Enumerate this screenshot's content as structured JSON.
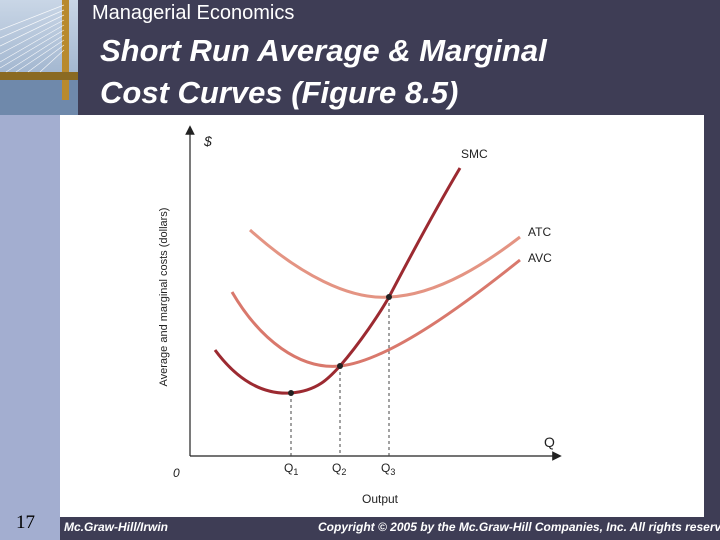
{
  "slide": {
    "header": "Managerial Economics",
    "title_line1": "Short Run Average & Marginal",
    "title_line2": "Cost Curves  (Figure 8.5)",
    "number": "17",
    "footer_left": "Mc.Graw-Hill/Irwin",
    "footer_right": "Copyright © 2005 by the Mc.Graw-Hill Companies, Inc. All rights reserv"
  },
  "figure": {
    "y_axis_symbol": "$",
    "y_axis_label": "Average and marginal costs (dollars)",
    "x_axis_symbol": "Q",
    "x_axis_label": "Output",
    "origin_label": "0",
    "curves": [
      {
        "label": "SMC",
        "color": "#9c2a31"
      },
      {
        "label": "ATC",
        "color": "#e49483"
      },
      {
        "label": "AVC",
        "color": "#d9786c"
      }
    ],
    "ticks": [
      {
        "base": "Q",
        "sub": "1"
      },
      {
        "base": "Q",
        "sub": "2"
      },
      {
        "base": "Q",
        "sub": "3"
      }
    ]
  },
  "colors": {
    "background": "#3e3d55",
    "left_strip": "#a3aed0",
    "panel": "#ffffff"
  }
}
